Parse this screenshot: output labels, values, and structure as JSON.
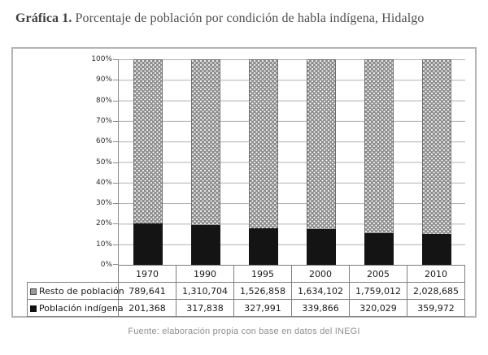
{
  "title": {
    "prefix": "Gráfica 1.",
    "text": " Porcentaje de población por condición de habla indígena, Hidalgo"
  },
  "source_note": "Fuente: elaboración propia con base en datos del INEGI",
  "colors": {
    "rest_fill": "#8d8d8d",
    "indigena_fill": "#141414",
    "gridline": "#b0b0b0",
    "table_border": "#7f7f7f",
    "box_border": "#b4b4b4"
  },
  "chart_data": {
    "type": "bar",
    "subtype": "stacked-100-percent",
    "title": "Porcentaje de población por condición de habla indígena, Hidalgo",
    "xlabel": "",
    "ylabel": "",
    "ylim": [
      0,
      100
    ],
    "grid": true,
    "legend_position": "table-rows-left",
    "categories": [
      "1970",
      "1990",
      "1995",
      "2000",
      "2005",
      "2010"
    ],
    "y_ticks": [
      "100%",
      "90%",
      "80%",
      "70%",
      "60%",
      "50%",
      "40%",
      "30%",
      "20%",
      "10%",
      "0%"
    ],
    "series": [
      {
        "name": "Resto de población",
        "style": "gray-dotted",
        "values": [
          789641,
          1310704,
          1526858,
          1634102,
          1759012,
          2028685
        ],
        "display": [
          "789,641",
          "1,310,704",
          "1,526,858",
          "1,634,102",
          "1,759,012",
          "2,028,685"
        ]
      },
      {
        "name": "Población indígena",
        "style": "black-solid",
        "values": [
          201368,
          317838,
          327991,
          339866,
          320029,
          359972
        ],
        "display": [
          "201,368",
          "317,838",
          "327,991",
          "339,866",
          "320,029",
          "359,972"
        ]
      }
    ]
  }
}
